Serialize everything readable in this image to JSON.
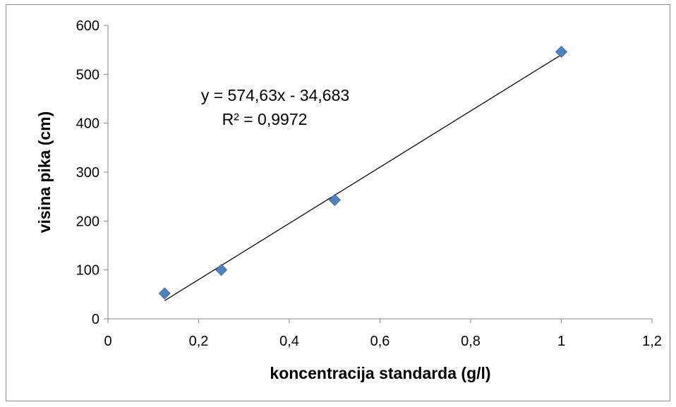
{
  "chart_data": {
    "type": "scatter",
    "title": "",
    "xlabel": "koncentracija standarda (g/l)",
    "ylabel": "visina pika (cm)",
    "xlim": [
      0,
      1.2
    ],
    "ylim": [
      0,
      600
    ],
    "x_ticks": [
      "0",
      "0,2",
      "0,4",
      "0,6",
      "0,8",
      "1",
      "1,2"
    ],
    "y_ticks": [
      "0",
      "100",
      "200",
      "300",
      "400",
      "500",
      "600"
    ],
    "grid": false,
    "legend": "none",
    "series": [
      {
        "x": [
          0.125,
          0.25,
          0.5,
          1.0
        ],
        "y": [
          52,
          100,
          243,
          546
        ],
        "color": "#4f81bd",
        "marker": "diamond"
      }
    ],
    "trendline": {
      "type": "linear",
      "slope": 574.63,
      "intercept": -34.683,
      "x_range": [
        0.125,
        1.0
      ],
      "color": "#000000"
    },
    "annotations": {
      "equation": "y = 574,63x - 34,683",
      "r_squared": "R² = 0,9972"
    }
  }
}
